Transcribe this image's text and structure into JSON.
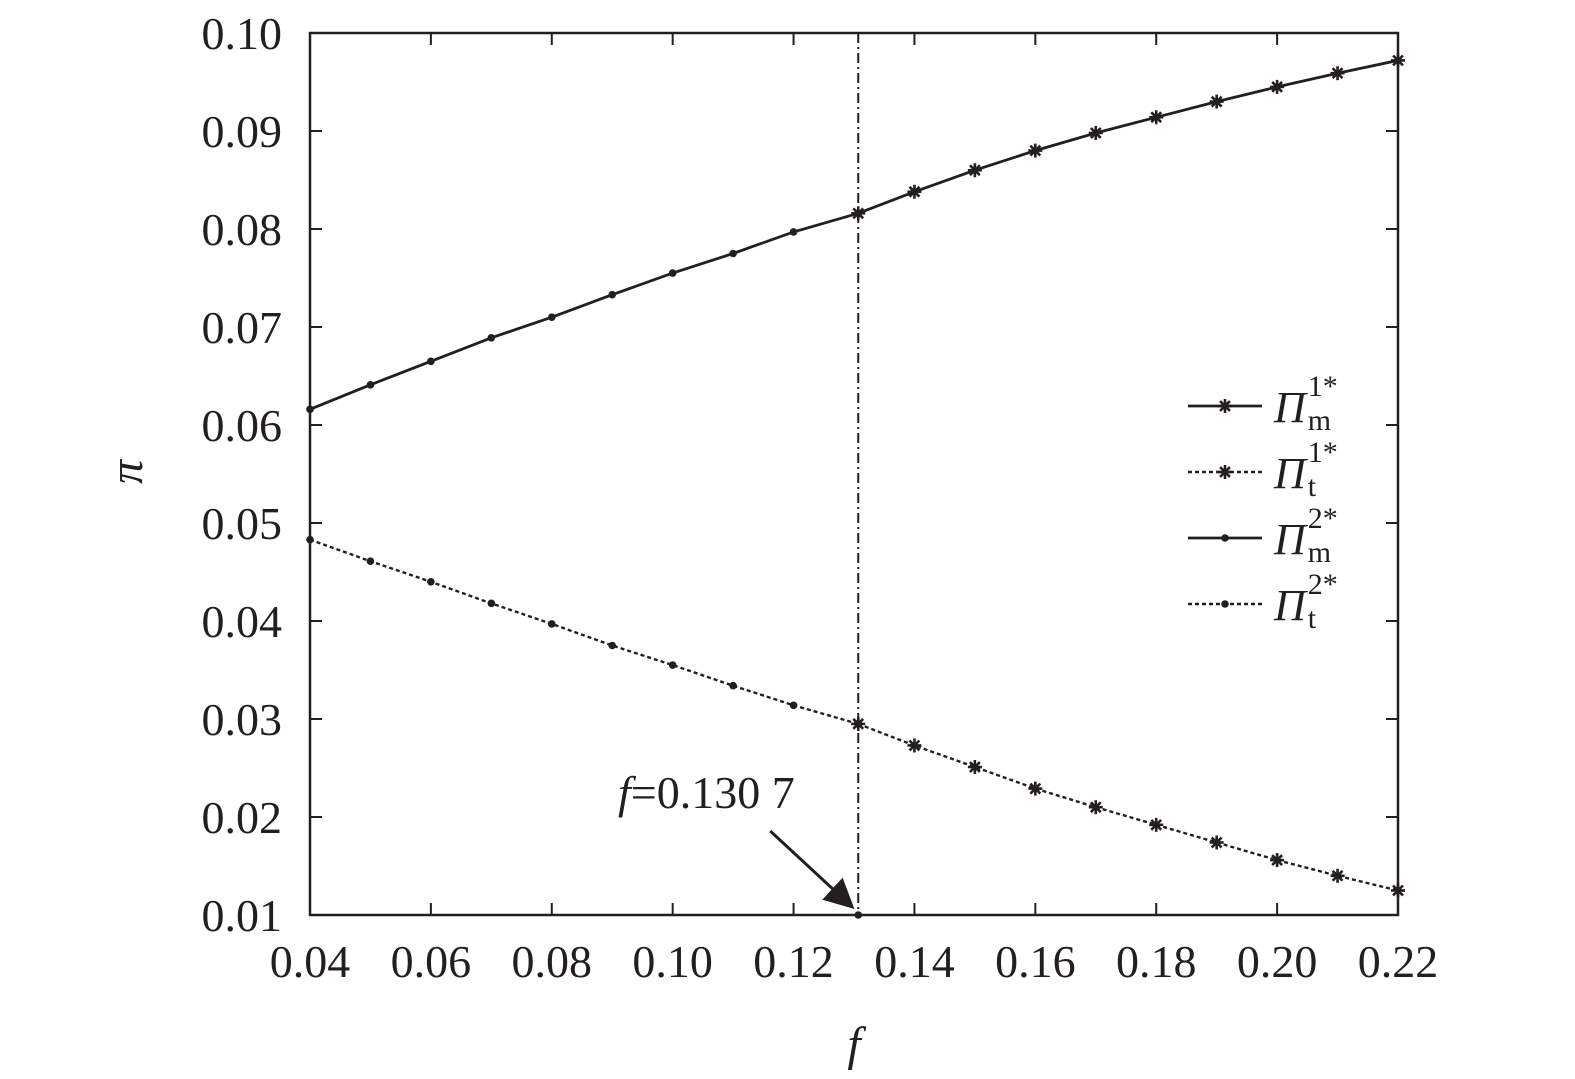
{
  "chart_data": {
    "type": "line",
    "xlabel": "f",
    "ylabel": "π",
    "xlim": [
      0.04,
      0.22
    ],
    "ylim": [
      0.01,
      0.1
    ],
    "x_ticks": [
      "0.04",
      "0.06",
      "0.08",
      "0.10",
      "0.12",
      "0.14",
      "0.16",
      "0.18",
      "0.20",
      "0.22"
    ],
    "y_ticks": [
      "0.01",
      "0.02",
      "0.03",
      "0.04",
      "0.05",
      "0.06",
      "0.07",
      "0.08",
      "0.09",
      "0.10"
    ],
    "grid": false,
    "legend_position": "right",
    "series": [
      {
        "name": "Π_m^{1*}",
        "symbol": "Π",
        "sub": "m",
        "sup": "1*",
        "line": "solid",
        "marker": "star",
        "x": [
          0.1307,
          0.14,
          0.15,
          0.16,
          0.17,
          0.18,
          0.19,
          0.2,
          0.21,
          0.22
        ],
        "y": [
          0.0816,
          0.0838,
          0.086,
          0.088,
          0.0898,
          0.0914,
          0.093,
          0.0945,
          0.0959,
          0.0972
        ]
      },
      {
        "name": "Π_t^{1*}",
        "symbol": "Π",
        "sub": "t",
        "sup": "1*",
        "line": "dotted",
        "marker": "star",
        "x": [
          0.1307,
          0.14,
          0.15,
          0.16,
          0.17,
          0.18,
          0.19,
          0.2,
          0.21,
          0.22
        ],
        "y": [
          0.0295,
          0.0273,
          0.0251,
          0.0229,
          0.021,
          0.0192,
          0.0174,
          0.0156,
          0.014,
          0.0125
        ]
      },
      {
        "name": "Π_m^{2*}",
        "symbol": "Π",
        "sub": "m",
        "sup": "2*",
        "line": "solid",
        "marker": "dot",
        "x": [
          0.04,
          0.05,
          0.06,
          0.07,
          0.08,
          0.09,
          0.1,
          0.11,
          0.12,
          0.1307
        ],
        "y": [
          0.0616,
          0.0641,
          0.0665,
          0.0689,
          0.071,
          0.0733,
          0.0755,
          0.0775,
          0.0797,
          0.0816
        ]
      },
      {
        "name": "Π_t^{2*}",
        "symbol": "Π",
        "sub": "t",
        "sup": "2*",
        "line": "dotted",
        "marker": "dot",
        "x": [
          0.04,
          0.05,
          0.06,
          0.07,
          0.08,
          0.09,
          0.1,
          0.11,
          0.12,
          0.1307
        ],
        "y": [
          0.0483,
          0.0461,
          0.044,
          0.0418,
          0.0397,
          0.0375,
          0.0355,
          0.0334,
          0.0314,
          0.0295
        ]
      }
    ],
    "vertical_line": {
      "x": 0.1307,
      "style": "dash-dot"
    },
    "annotation": {
      "italic_part": "f",
      "text_part": "=0.130 7",
      "target": {
        "x": 0.1307,
        "y": 0.01
      }
    }
  }
}
